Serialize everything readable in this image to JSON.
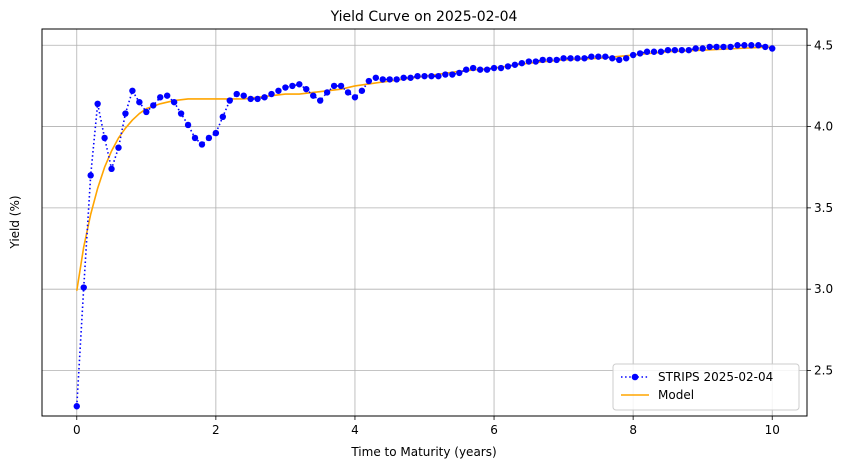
{
  "chart_data": {
    "type": "line",
    "title": "Yield Curve on 2025-02-04",
    "xlabel": "Time to Maturity (years)",
    "ylabel": "Yield (%)",
    "xlim": [
      -0.5,
      10.5
    ],
    "ylim": [
      2.22,
      4.6
    ],
    "x_ticks": [
      0,
      2,
      4,
      6,
      8,
      10
    ],
    "x_tick_labels": [
      "0",
      "2",
      "4",
      "6",
      "8",
      "10"
    ],
    "y_ticks": [
      2.5,
      3.0,
      3.5,
      4.0,
      4.5
    ],
    "y_tick_labels": [
      "2.5",
      "3.0",
      "3.5",
      "4.0",
      "4.5"
    ],
    "y_axis_side": "right",
    "grid": true,
    "legend_position": "lower-right",
    "series": [
      {
        "name": "STRIPS 2025-02-04",
        "style": "dotted-line-with-markers",
        "color": "#0000ff",
        "x": [
          0,
          0.1,
          0.2,
          0.3,
          0.4,
          0.5,
          0.6,
          0.7,
          0.8,
          0.9,
          1.0,
          1.1,
          1.2,
          1.3,
          1.4,
          1.5,
          1.6,
          1.7,
          1.8,
          1.9,
          2.0,
          2.1,
          2.2,
          2.3,
          2.4,
          2.5,
          2.6,
          2.7,
          2.8,
          2.9,
          3.0,
          3.1,
          3.2,
          3.3,
          3.4,
          3.5,
          3.6,
          3.7,
          3.8,
          3.9,
          4.0,
          4.1,
          4.2,
          4.3,
          4.4,
          4.5,
          4.6,
          4.7,
          4.8,
          4.9,
          5.0,
          5.1,
          5.2,
          5.3,
          5.4,
          5.5,
          5.6,
          5.7,
          5.8,
          5.9,
          6.0,
          6.1,
          6.2,
          6.3,
          6.4,
          6.5,
          6.6,
          6.7,
          6.8,
          6.9,
          7.0,
          7.1,
          7.2,
          7.3,
          7.4,
          7.5,
          7.6,
          7.7,
          7.8,
          7.9,
          8.0,
          8.1,
          8.2,
          8.3,
          8.4,
          8.5,
          8.6,
          8.7,
          8.8,
          8.9,
          9.0,
          9.1,
          9.2,
          9.3,
          9.4,
          9.5,
          9.6,
          9.7,
          9.8,
          9.9,
          10.0
        ],
        "y": [
          2.28,
          3.01,
          3.7,
          4.14,
          3.93,
          3.74,
          3.87,
          4.08,
          4.22,
          4.15,
          4.09,
          4.13,
          4.18,
          4.19,
          4.15,
          4.08,
          4.01,
          3.93,
          3.89,
          3.93,
          3.96,
          4.06,
          4.16,
          4.2,
          4.19,
          4.17,
          4.17,
          4.18,
          4.2,
          4.22,
          4.24,
          4.25,
          4.26,
          4.23,
          4.19,
          4.16,
          4.21,
          4.25,
          4.25,
          4.21,
          4.18,
          4.22,
          4.28,
          4.3,
          4.29,
          4.29,
          4.29,
          4.3,
          4.3,
          4.31,
          4.31,
          4.31,
          4.31,
          4.32,
          4.32,
          4.33,
          4.35,
          4.36,
          4.35,
          4.35,
          4.36,
          4.36,
          4.37,
          4.38,
          4.39,
          4.4,
          4.4,
          4.41,
          4.41,
          4.41,
          4.42,
          4.42,
          4.42,
          4.42,
          4.43,
          4.43,
          4.43,
          4.42,
          4.41,
          4.42,
          4.44,
          4.45,
          4.46,
          4.46,
          4.46,
          4.47,
          4.47,
          4.47,
          4.47,
          4.48,
          4.48,
          4.49,
          4.49,
          4.49,
          4.49,
          4.5,
          4.5,
          4.5,
          4.5,
          4.49,
          4.48
        ]
      },
      {
        "name": "Model",
        "style": "solid-line",
        "color": "#ffa500",
        "x": [
          0,
          0.1,
          0.2,
          0.3,
          0.4,
          0.5,
          0.6,
          0.7,
          0.8,
          0.9,
          1.0,
          1.2,
          1.4,
          1.6,
          1.8,
          2.0,
          2.2,
          2.4,
          2.6,
          2.8,
          3.0,
          3.2,
          3.4,
          3.6,
          3.8,
          4.0,
          4.5,
          5.0,
          5.5,
          6.0,
          6.5,
          7.0,
          7.5,
          8.0,
          8.5,
          9.0,
          9.5,
          10.0
        ],
        "y": [
          2.99,
          3.26,
          3.46,
          3.62,
          3.75,
          3.85,
          3.93,
          3.99,
          4.04,
          4.08,
          4.11,
          4.14,
          4.16,
          4.17,
          4.17,
          4.17,
          4.17,
          4.17,
          4.18,
          4.19,
          4.2,
          4.2,
          4.21,
          4.22,
          4.23,
          4.25,
          4.28,
          4.31,
          4.34,
          4.36,
          4.39,
          4.41,
          4.42,
          4.44,
          4.46,
          4.47,
          4.48,
          4.49
        ]
      }
    ]
  }
}
